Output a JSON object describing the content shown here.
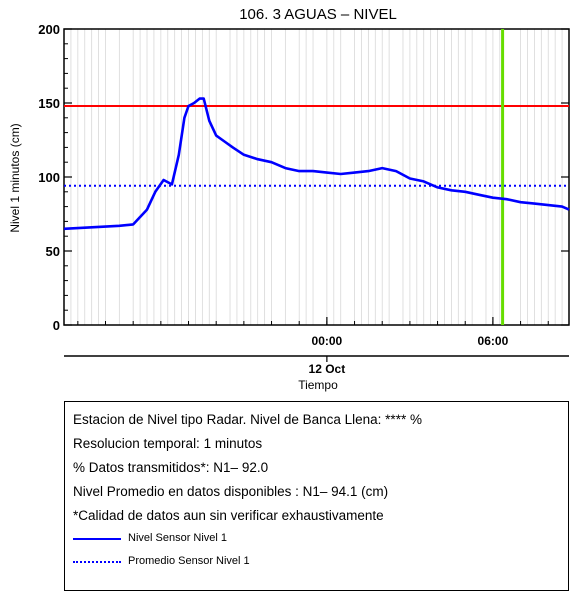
{
  "chart_data": {
    "type": "line",
    "title": "106. 3 AGUAS – NIVEL",
    "xlabel": "Tiempo",
    "ylabel": "Nivel 1 minutos (cm)",
    "ylim": [
      0,
      200
    ],
    "yticks": [
      0,
      50,
      100,
      150,
      200
    ],
    "xlim": [
      -9.5,
      8.75
    ],
    "x_unit": "hours relative to 12 Oct 00:00",
    "xtick_labels": [
      {
        "x": 0,
        "label": "00:00"
      },
      {
        "x": 6,
        "label": "06:00"
      }
    ],
    "date_label": {
      "x": 0,
      "label": "12 Oct"
    },
    "series": [
      {
        "name": "Nivel Sensor Nivel 1",
        "color": "#0000ff",
        "style": "solid",
        "x": [
          -9.5,
          -8.5,
          -7.5,
          -7.0,
          -6.5,
          -6.2,
          -5.9,
          -5.6,
          -5.35,
          -5.15,
          -5.0,
          -4.8,
          -4.6,
          -4.45,
          -4.25,
          -4.0,
          -3.7,
          -3.4,
          -3.0,
          -2.5,
          -2.0,
          -1.5,
          -1.0,
          -0.5,
          0.0,
          0.5,
          1.0,
          1.5,
          2.0,
          2.5,
          3.0,
          3.5,
          4.0,
          4.5,
          5.0,
          5.5,
          6.0,
          6.5,
          7.0,
          7.5,
          8.0,
          8.5,
          8.75
        ],
        "values": [
          65,
          66,
          67,
          68,
          78,
          90,
          98,
          95,
          115,
          140,
          148,
          150,
          153,
          153,
          138,
          128,
          124,
          120,
          115,
          112,
          110,
          106,
          104,
          104,
          103,
          102,
          103,
          104,
          106,
          104,
          99,
          97,
          93,
          91,
          90,
          88,
          86,
          85,
          83,
          82,
          81,
          80,
          78
        ]
      },
      {
        "name": "Promedio Sensor Nivel 1",
        "color": "#0000ff",
        "style": "dotted",
        "y": 94.1
      }
    ],
    "reference_lines": [
      {
        "orientation": "horizontal",
        "y": 148,
        "color": "#ff0000"
      },
      {
        "orientation": "vertical",
        "x": 6.35,
        "color": "#66dd00"
      }
    ],
    "grid_color": "#d8d8d8"
  },
  "info": {
    "lines": [
      "Estacion de Nivel tipo Radar. Nivel de Banca Llena: **** %",
      "Resolucion temporal: 1 minutos",
      "% Datos transmitidos*: N1– 92.0",
      "Nivel Promedio en datos disponibles : N1– 94.1 (cm)",
      "*Calidad de datos aun sin verificar exhaustivamente"
    ],
    "legend": [
      {
        "label": "Nivel Sensor Nivel 1",
        "style": "solid",
        "color": "#0000ff"
      },
      {
        "label": "Promedio Sensor Nivel 1",
        "style": "dotted",
        "color": "#0000ff"
      }
    ]
  }
}
